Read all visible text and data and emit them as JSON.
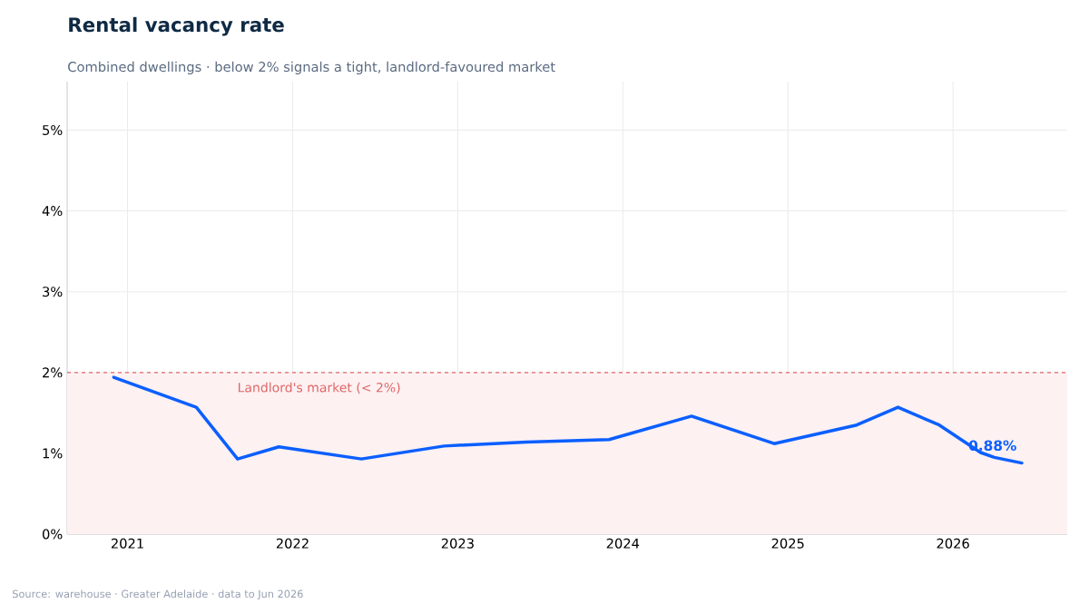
{
  "chart_data": {
    "type": "line",
    "title": "Rental vacancy rate",
    "subtitle": "Combined dwellings · below 2% signals a tight, landlord-favoured market",
    "x": [
      "2020-12",
      "2021-06",
      "2021-09",
      "2021-12",
      "2022-06",
      "2022-12",
      "2023-06",
      "2023-12",
      "2024-06",
      "2024-12",
      "2025-06",
      "2025-09",
      "2025-12",
      "2026-03",
      "2026-04",
      "2026-06"
    ],
    "series": [
      {
        "color": "#0b5fff",
        "values": [
          1.94,
          1.57,
          0.93,
          1.08,
          0.93,
          1.09,
          1.14,
          1.17,
          1.46,
          1.12,
          1.35,
          1.57,
          1.35,
          1.01,
          0.95,
          0.88
        ]
      }
    ],
    "xlim": [
      "2020-08-20",
      "2026-09-10"
    ],
    "xticks": [
      "2021",
      "2022",
      "2023",
      "2024",
      "2025",
      "2026"
    ],
    "ylim": [
      0,
      5.6
    ],
    "yticks": [
      {
        "value": 0,
        "label": "0%"
      },
      {
        "value": 1,
        "label": "1%"
      },
      {
        "value": 2,
        "label": "2%"
      },
      {
        "value": 3,
        "label": "3%"
      },
      {
        "value": 4,
        "label": "4%"
      },
      {
        "value": 5,
        "label": "5%"
      }
    ],
    "ref_lines": [
      {
        "axis": "y",
        "value": 2,
        "color": "#e06666",
        "line_style": "dashed"
      }
    ],
    "bands": [
      {
        "axis": "y",
        "from": 0,
        "to": 2,
        "label": "Landlord's market (< 2%)",
        "color": "#fdf1f2"
      }
    ],
    "annotations": [
      {
        "text": "0.88%",
        "x": "2026-06",
        "y": 0.88
      },
      "Source: warehouse  ·  Greater Adelaide  ·  data to Jun 2026"
    ],
    "grid": true,
    "marker": "none",
    "line_style": "solid"
  }
}
